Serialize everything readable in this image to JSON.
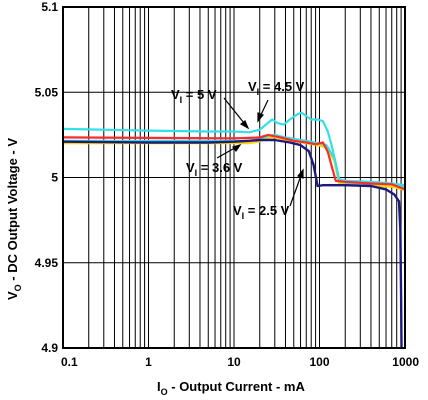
{
  "chart_data": {
    "type": "line",
    "xscale": "log",
    "xlim": [
      0.1,
      1000
    ],
    "ylim": [
      4.9,
      5.1
    ],
    "grid": true,
    "xlabel": {
      "main": "I",
      "sub": "O",
      "rest": " - Output Current - mA"
    },
    "ylabel": {
      "main": "V",
      "sub": "O",
      "rest": " - DC Output Voltage - V"
    },
    "x_tick_labels": [
      {
        "value": 0.1,
        "label": "0.1"
      },
      {
        "value": 1,
        "label": "1"
      },
      {
        "value": 10,
        "label": "10"
      },
      {
        "value": 100,
        "label": "100"
      },
      {
        "value": 1000,
        "label": "1000"
      }
    ],
    "y_tick_labels": [
      {
        "value": 4.9,
        "label": "4.9"
      },
      {
        "value": 4.95,
        "label": "4.95"
      },
      {
        "value": 5.0,
        "label": "5"
      },
      {
        "value": 5.05,
        "label": "5.05"
      },
      {
        "value": 5.1,
        "label": "5.1"
      }
    ],
    "series": [
      {
        "name": "V_I = 5 V",
        "color": "#33e0e8",
        "points": [
          [
            0.1,
            5.0215
          ],
          [
            1,
            5.0215
          ],
          [
            10,
            5.0215
          ],
          [
            15,
            5.0215
          ],
          [
            20,
            5.0225
          ],
          [
            25,
            5.0245
          ],
          [
            30,
            5.025
          ],
          [
            40,
            5.0235
          ],
          [
            60,
            5.022
          ],
          [
            80,
            5.021
          ],
          [
            100,
            5.02
          ],
          [
            120,
            5.019
          ],
          [
            150,
            5.011
          ],
          [
            170,
            4.998
          ],
          [
            200,
            4.997
          ],
          [
            400,
            4.9965
          ],
          [
            700,
            4.996
          ],
          [
            1000,
            4.994
          ]
        ]
      },
      {
        "name": "V_I = 4.5 V",
        "color": "#33e0e8",
        "points": [
          [
            0.1,
            5.0285
          ],
          [
            1,
            5.0275
          ],
          [
            5,
            5.027
          ],
          [
            10,
            5.027
          ],
          [
            15,
            5.0265
          ],
          [
            20,
            5.028
          ],
          [
            25,
            5.032
          ],
          [
            28,
            5.034
          ],
          [
            32,
            5.032
          ],
          [
            38,
            5.031
          ],
          [
            45,
            5.034
          ],
          [
            55,
            5.037
          ],
          [
            62,
            5.038
          ],
          [
            70,
            5.036
          ],
          [
            80,
            5.034
          ],
          [
            95,
            5.034
          ],
          [
            110,
            5.033
          ],
          [
            125,
            5.027
          ],
          [
            140,
            5.018
          ],
          [
            155,
            5.008
          ],
          [
            170,
            4.999
          ],
          [
            200,
            4.998
          ],
          [
            400,
            4.9975
          ],
          [
            700,
            4.9965
          ],
          [
            1000,
            4.9955
          ]
        ]
      },
      {
        "name": "V_I = 3.6 V",
        "color": "#ff2a2a",
        "points": [
          [
            0.1,
            5.0235
          ],
          [
            1,
            5.0232
          ],
          [
            10,
            5.023
          ],
          [
            15,
            5.0232
          ],
          [
            20,
            5.0235
          ],
          [
            25,
            5.025
          ],
          [
            35,
            5.0235
          ],
          [
            50,
            5.0215
          ],
          [
            70,
            5.0205
          ],
          [
            90,
            5.0195
          ],
          [
            110,
            5.0205
          ],
          [
            125,
            5.015
          ],
          [
            140,
            5.006
          ],
          [
            155,
            4.998
          ],
          [
            200,
            4.9975
          ],
          [
            400,
            4.9965
          ],
          [
            700,
            4.996
          ],
          [
            1000,
            4.993
          ]
        ]
      },
      {
        "name": "V_I = 2.5 V",
        "color": "#1a1a80",
        "points": [
          [
            0.1,
            5.021
          ],
          [
            1,
            5.0205
          ],
          [
            5,
            5.0205
          ],
          [
            10,
            5.021
          ],
          [
            15,
            5.0215
          ],
          [
            20,
            5.022
          ],
          [
            30,
            5.022
          ],
          [
            45,
            5.0205
          ],
          [
            60,
            5.019
          ],
          [
            75,
            5.0155
          ],
          [
            85,
            5.0075
          ],
          [
            95,
            4.995
          ],
          [
            110,
            4.9955
          ],
          [
            200,
            4.9955
          ],
          [
            400,
            4.995
          ],
          [
            600,
            4.993
          ],
          [
            750,
            4.99
          ],
          [
            850,
            4.986
          ],
          [
            880,
            4.97
          ],
          [
            900,
            4.93
          ],
          [
            910,
            4.9
          ]
        ]
      }
    ],
    "annotations": [
      {
        "main": "V",
        "sub": "I",
        "rest": " = 5 V"
      },
      {
        "main": "V",
        "sub": "I",
        "rest": " = 4.5 V"
      },
      {
        "main": "V",
        "sub": "I",
        "rest": " = 3.6 V"
      },
      {
        "main": "V",
        "sub": "I",
        "rest": " = 2.5 V"
      }
    ]
  }
}
